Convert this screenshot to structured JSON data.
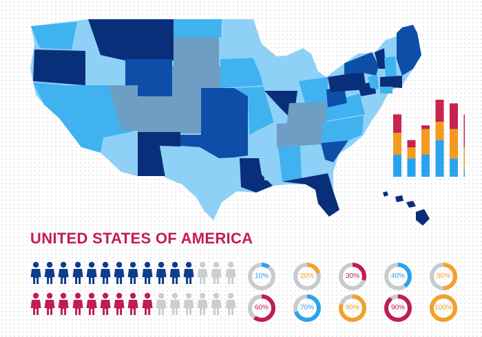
{
  "title": "UNITED STATES OF AMERICA",
  "colors": {
    "navy": "#0a2f7a",
    "blue": "#0d4ea8",
    "mid": "#2f8fe4",
    "sky": "#3fb2ef",
    "light": "#8fd0f7",
    "slate": "#6e9ec3",
    "gray": "#c8cbce",
    "crimson": "#c11d4e",
    "orange": "#f4a02b",
    "bar_red": "#c8234f",
    "bar_orange": "#f39a1f",
    "bar_blue": "#2aa3ee",
    "person_gray": "#cbcdd0"
  },
  "people_rows": [
    {
      "color": "#0d3d8c",
      "filled": 12,
      "total": 15
    },
    {
      "color": "#c11d4e",
      "filled": 9,
      "total": 15
    }
  ],
  "donuts": [
    {
      "label": "10%",
      "value": 10,
      "color": "#2aa3ee"
    },
    {
      "label": "20%",
      "value": 20,
      "color": "#f4a02b"
    },
    {
      "label": "30%",
      "value": 30,
      "color": "#c11d4e"
    },
    {
      "label": "40%",
      "value": 40,
      "color": "#2aa3ee"
    },
    {
      "label": "50%",
      "value": 50,
      "color": "#f4a02b"
    },
    {
      "label": "60%",
      "value": 60,
      "color": "#c11d4e"
    },
    {
      "label": "70%",
      "value": 70,
      "color": "#2aa3ee"
    },
    {
      "label": "80%",
      "value": 80,
      "color": "#f4a02b"
    },
    {
      "label": "90%",
      "value": 90,
      "color": "#c11d4e"
    },
    {
      "label": "100%",
      "value": 100,
      "color": "#f4a02b"
    }
  ],
  "chart_data": {
    "type": "bar",
    "stacked": true,
    "categories": [
      "",
      "",
      "",
      "",
      "",
      ""
    ],
    "series": [
      {
        "color": "#2aa3ee",
        "values": [
          30,
          25,
          30,
          50,
          25,
          10
        ]
      },
      {
        "color": "#f39a1f",
        "values": [
          30,
          15,
          35,
          25,
          40,
          30
        ]
      },
      {
        "color": "#c8234f",
        "values": [
          25,
          10,
          5,
          30,
          35,
          45
        ]
      }
    ],
    "ylim": [
      0,
      105
    ],
    "grid": false,
    "axes": false
  }
}
